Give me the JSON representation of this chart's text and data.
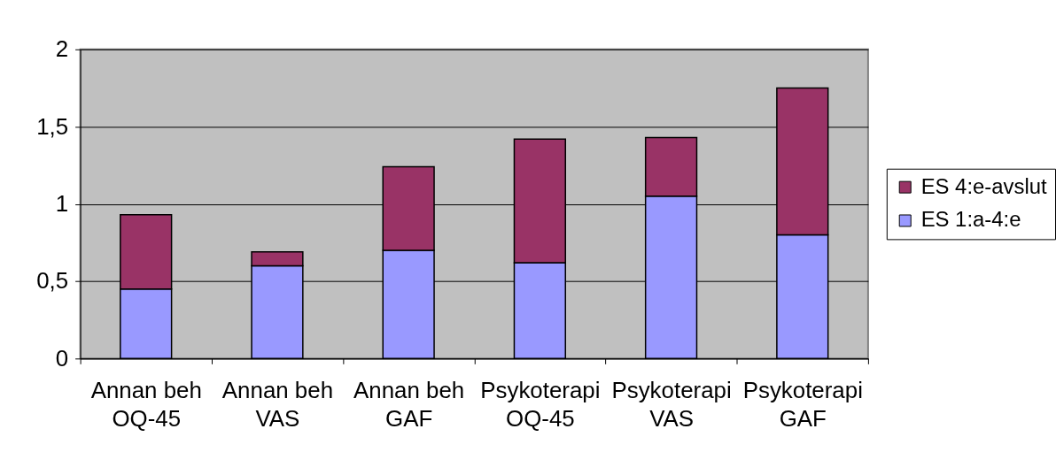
{
  "chart_data": {
    "type": "bar",
    "stacked": true,
    "categories": [
      "Annan beh OQ-45",
      "Annan beh VAS",
      "Annan beh GAF",
      "Psykoterapi OQ-45",
      "Psykoterapi VAS",
      "Psykoterapi GAF"
    ],
    "series": [
      {
        "name": "ES 1:a-4:e",
        "color": "#9999ff",
        "values": [
          0.45,
          0.6,
          0.7,
          0.62,
          1.05,
          0.8
        ]
      },
      {
        "name": "ES 4:e-avslut",
        "color": "#993366",
        "values": [
          0.48,
          0.09,
          0.54,
          0.8,
          0.38,
          0.95
        ]
      }
    ],
    "ylim": [
      0,
      2
    ],
    "yticks": [
      0,
      {
        "value": 0.5,
        "label": "0,5"
      },
      1,
      {
        "value": 1.5,
        "label": "1,5"
      },
      2
    ],
    "grid": "y",
    "legend": "right"
  }
}
